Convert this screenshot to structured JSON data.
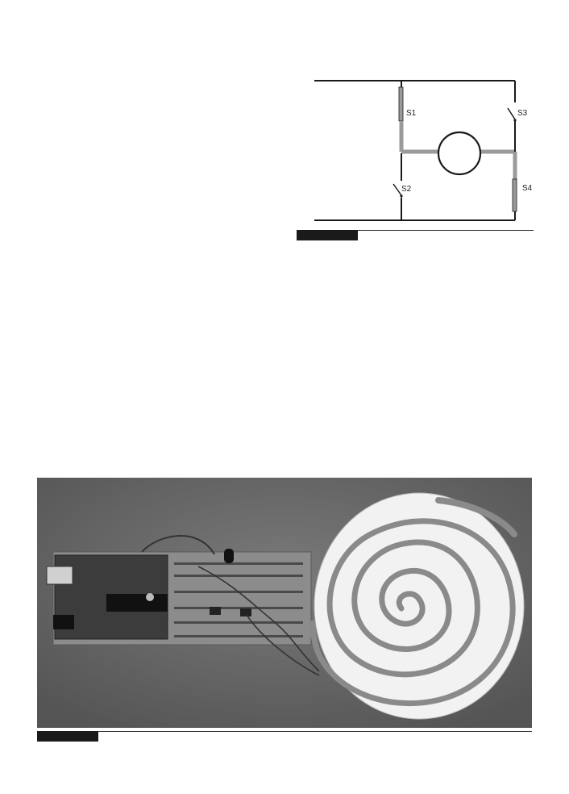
{
  "figure1": {
    "switches": [
      {
        "id": "s1",
        "label": "S1"
      },
      {
        "id": "s2",
        "label": "S2"
      },
      {
        "id": "s3",
        "label": "S3"
      },
      {
        "id": "s4",
        "label": "S4"
      }
    ],
    "caption": ""
  },
  "figure2": {
    "caption": ""
  }
}
